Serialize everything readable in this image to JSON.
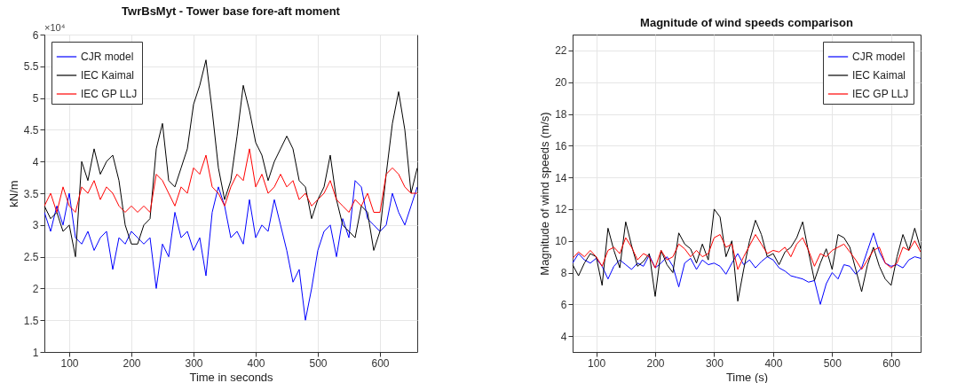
{
  "chart_data": [
    {
      "type": "line",
      "title": "TwrBsMyt - Tower base fore-aft moment",
      "xlabel": "Time in seconds",
      "ylabel": "kN/m",
      "annotations": [
        "×10⁴"
      ],
      "x": [
        60,
        70,
        80,
        90,
        100,
        110,
        120,
        130,
        140,
        150,
        160,
        170,
        180,
        190,
        200,
        210,
        220,
        230,
        240,
        250,
        260,
        270,
        280,
        290,
        300,
        310,
        320,
        330,
        340,
        350,
        360,
        370,
        380,
        390,
        400,
        410,
        420,
        430,
        440,
        450,
        460,
        470,
        480,
        490,
        500,
        510,
        520,
        530,
        540,
        550,
        560,
        570,
        580,
        590,
        600,
        610,
        620,
        630,
        640,
        650,
        660
      ],
      "series": [
        {
          "name": "CJR model",
          "color": "#0000ff",
          "values": [
            3.2,
            2.9,
            3.3,
            3.0,
            3.5,
            2.8,
            2.7,
            2.9,
            2.6,
            2.8,
            2.9,
            2.3,
            2.8,
            2.7,
            2.9,
            2.8,
            2.7,
            2.8,
            2.0,
            2.7,
            2.5,
            3.2,
            2.8,
            2.9,
            2.6,
            2.8,
            2.2,
            3.2,
            3.6,
            3.3,
            2.8,
            2.9,
            2.7,
            3.4,
            2.8,
            3.0,
            2.9,
            3.4,
            3.0,
            2.6,
            2.1,
            2.3,
            1.5,
            2.0,
            2.6,
            2.9,
            3.0,
            2.5,
            3.1,
            2.8,
            3.7,
            3.6,
            3.1,
            3.0,
            2.9,
            3.0,
            3.5,
            3.2,
            3.0,
            3.3,
            3.6
          ]
        },
        {
          "name": "IEC Kaimal",
          "color": "#000000",
          "values": [
            3.3,
            3.1,
            3.2,
            2.9,
            3.0,
            2.5,
            4.0,
            3.7,
            4.2,
            3.8,
            4.0,
            4.1,
            3.7,
            3.0,
            2.7,
            2.7,
            3.0,
            3.1,
            4.2,
            4.6,
            3.7,
            3.6,
            3.9,
            4.2,
            4.9,
            5.2,
            5.6,
            4.8,
            3.9,
            3.4,
            3.7,
            4.4,
            5.2,
            4.8,
            4.3,
            4.1,
            3.7,
            4.0,
            4.2,
            4.4,
            4.2,
            3.7,
            3.6,
            3.1,
            3.4,
            3.6,
            4.1,
            3.4,
            3.0,
            2.9,
            2.8,
            3.3,
            3.2,
            2.6,
            2.9,
            3.8,
            4.6,
            5.1,
            4.5,
            3.5,
            3.9
          ]
        },
        {
          "name": "IEC GP LLJ",
          "color": "#ff0000",
          "values": [
            3.3,
            3.5,
            3.2,
            3.6,
            3.3,
            3.2,
            3.6,
            3.5,
            3.7,
            3.4,
            3.6,
            3.5,
            3.3,
            3.2,
            3.3,
            3.2,
            3.3,
            3.2,
            3.8,
            3.7,
            3.5,
            3.3,
            3.6,
            3.5,
            3.9,
            3.8,
            4.1,
            3.6,
            3.5,
            3.3,
            3.6,
            3.8,
            3.7,
            4.2,
            3.6,
            3.8,
            3.5,
            3.6,
            3.8,
            3.6,
            3.7,
            3.4,
            3.5,
            3.3,
            3.4,
            3.5,
            3.7,
            3.4,
            3.3,
            3.2,
            3.4,
            3.3,
            3.5,
            3.2,
            3.2,
            3.8,
            3.9,
            3.8,
            3.6,
            3.5,
            3.5
          ]
        }
      ],
      "xlim": [
        60,
        660
      ],
      "xticks": [
        100,
        200,
        300,
        400,
        500,
        600
      ],
      "ylim": [
        1,
        6
      ],
      "yticks": [
        1,
        1.5,
        2,
        2.5,
        3,
        3.5,
        4,
        4.5,
        5,
        5.5,
        6
      ],
      "grid": true,
      "legend": "top left"
    },
    {
      "type": "line",
      "title": "Magnitude of wind speeds comparison",
      "xlabel": "Time (s)",
      "ylabel": "Magnitude of wind speeds (m/s)",
      "x": [
        60,
        70,
        80,
        90,
        100,
        110,
        120,
        130,
        140,
        150,
        160,
        170,
        180,
        190,
        200,
        210,
        220,
        230,
        240,
        250,
        260,
        270,
        280,
        290,
        300,
        310,
        320,
        330,
        340,
        350,
        360,
        370,
        380,
        390,
        400,
        410,
        420,
        430,
        440,
        450,
        460,
        470,
        480,
        490,
        500,
        510,
        520,
        530,
        540,
        550,
        560,
        570,
        580,
        590,
        600,
        610,
        620,
        630,
        640,
        650
      ],
      "series": [
        {
          "name": "CJR model",
          "color": "#0000ff",
          "values": [
            8.6,
            9.2,
            8.8,
            8.6,
            8.9,
            8.4,
            7.6,
            8.4,
            8.8,
            8.5,
            8.2,
            8.6,
            8.4,
            9.1,
            8.3,
            8.6,
            9.0,
            8.4,
            7.1,
            8.6,
            8.9,
            8.2,
            8.8,
            8.5,
            8.6,
            8.4,
            7.9,
            8.6,
            9.2,
            8.5,
            8.8,
            8.3,
            8.7,
            9.0,
            8.8,
            8.3,
            8.1,
            7.8,
            7.7,
            7.6,
            7.4,
            7.5,
            6.0,
            7.3,
            8.0,
            7.6,
            8.5,
            8.4,
            7.9,
            8.3,
            9.4,
            10.5,
            9.3,
            8.6,
            8.4,
            8.5,
            8.3,
            8.8,
            9.0,
            8.9
          ]
        },
        {
          "name": "IEC Kaimal",
          "color": "#000000",
          "values": [
            8.5,
            7.8,
            8.6,
            9.2,
            9.0,
            7.2,
            10.8,
            9.4,
            8.3,
            11.2,
            9.7,
            8.4,
            8.7,
            9.2,
            6.5,
            9.4,
            8.5,
            8.0,
            10.5,
            9.8,
            9.5,
            8.6,
            9.8,
            8.8,
            12.0,
            11.5,
            9.0,
            10.0,
            6.2,
            8.2,
            10.0,
            11.3,
            10.4,
            9.0,
            9.2,
            8.5,
            9.3,
            9.6,
            10.2,
            11.2,
            9.3,
            7.5,
            8.6,
            9.5,
            8.2,
            10.4,
            10.2,
            9.6,
            8.2,
            6.8,
            8.5,
            9.6,
            8.4,
            7.6,
            7.2,
            9.0,
            10.4,
            9.4,
            10.8,
            9.5
          ]
        },
        {
          "name": "IEC GP LLJ",
          "color": "#ff0000",
          "values": [
            8.9,
            9.3,
            9.0,
            9.4,
            9.0,
            8.4,
            9.4,
            9.6,
            9.2,
            10.2,
            9.6,
            8.8,
            9.2,
            9.0,
            8.3,
            9.4,
            8.8,
            9.0,
            9.8,
            9.5,
            9.0,
            9.4,
            9.0,
            9.2,
            10.2,
            10.4,
            9.6,
            9.8,
            8.2,
            9.0,
            9.7,
            10.4,
            9.8,
            9.2,
            9.4,
            9.3,
            9.6,
            9.0,
            9.8,
            10.2,
            9.4,
            8.4,
            9.2,
            9.0,
            9.4,
            9.6,
            9.8,
            9.3,
            8.8,
            8.2,
            8.8,
            9.4,
            9.6,
            8.6,
            8.3,
            8.6,
            9.6,
            9.4,
            10.0,
            9.3
          ]
        }
      ],
      "xlim": [
        60,
        650
      ],
      "xticks": [
        100,
        200,
        300,
        400,
        500,
        600
      ],
      "ylim": [
        3,
        23
      ],
      "yticks": [
        4,
        6,
        8,
        10,
        12,
        14,
        16,
        18,
        20,
        22
      ],
      "grid": true,
      "legend": "top right"
    }
  ]
}
